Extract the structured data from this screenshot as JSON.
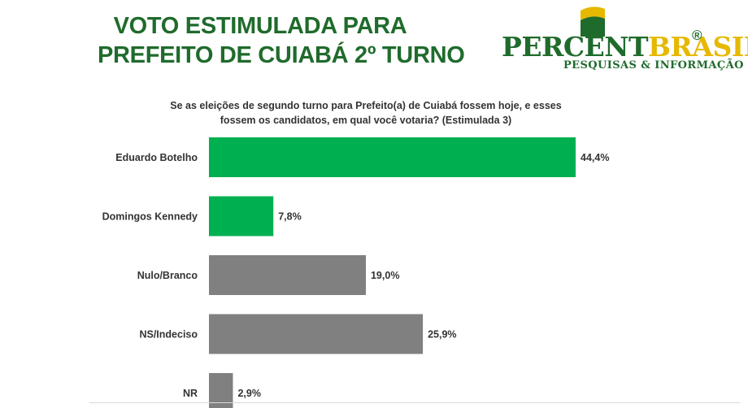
{
  "title": {
    "line1": "VOTO ESTIMULADA PARA",
    "line2": "PREFEITO DE  CUIABÁ 2º TURNO"
  },
  "logo": {
    "word_part1": "PERCENT",
    "word_part2": "BRASIL",
    "registered": "®",
    "subtitle": "PESQUISAS & INFORMAÇÃO"
  },
  "question": "Se as eleições de segundo turno para Prefeito(a) de Cuiabá fossem hoje, e esses fossem os candidatos, em qual você votaria? (Estimulada 3)",
  "colors": {
    "title_green": "#1f6b2c",
    "logo_gold": "#e6b800",
    "bar_green": "#00b050",
    "bar_gray": "#808080"
  },
  "chart_data": {
    "type": "bar",
    "orientation": "horizontal",
    "categories": [
      "Eduardo Botelho",
      "Domingos Kennedy",
      "Nulo/Branco",
      "NS/Indeciso",
      "NR"
    ],
    "values": [
      44.4,
      7.8,
      19.0,
      25.9,
      2.9
    ],
    "value_labels": [
      "44,4%",
      "7,8%",
      "19,0%",
      "25,9%",
      "2,9%"
    ],
    "bar_colors": [
      "#00b050",
      "#00b050",
      "#808080",
      "#808080",
      "#808080"
    ],
    "xlim": [
      0,
      50
    ],
    "grid": false,
    "legend": "none"
  }
}
